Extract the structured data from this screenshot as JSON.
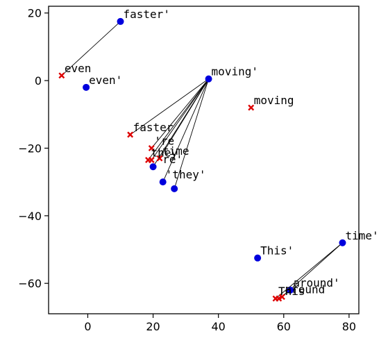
{
  "chart_data": {
    "type": "scatter",
    "xlim": [
      -12,
      83
    ],
    "ylim": [
      -69,
      22
    ],
    "xticks": [
      0,
      20,
      40,
      60,
      80
    ],
    "yticks": [
      20,
      0,
      -20,
      -40,
      -60
    ],
    "grid": false,
    "colors": {
      "blue_series": "#0000dd",
      "red_series": "#dd0000",
      "links": "#000000"
    },
    "blue_points": [
      {
        "label": "faster'",
        "x": 10.0,
        "y": 17.5
      },
      {
        "label": "even'",
        "x": -0.5,
        "y": -2.0
      },
      {
        "label": "moving'",
        "x": 37.0,
        "y": 0.5
      },
      {
        "label": "'re'",
        "x": 20.0,
        "y": -25.5
      },
      {
        "label": "'they'",
        "x": 23.0,
        "y": -30.0
      },
      {
        "label": "",
        "x": 26.5,
        "y": -32.0
      },
      {
        "label": "This'",
        "x": 52.0,
        "y": -52.5
      },
      {
        "label": "time'",
        "x": 78.0,
        "y": -48.0
      },
      {
        "label": "around'",
        "x": 62.0,
        "y": -62.0
      }
    ],
    "red_points": [
      {
        "label": "even",
        "x": -8.0,
        "y": 1.5
      },
      {
        "label": "moving",
        "x": 50.0,
        "y": -8.0
      },
      {
        "label": "faster",
        "x": 13.0,
        "y": -16.0
      },
      {
        "label": "'re",
        "x": 19.5,
        "y": -20.0
      },
      {
        "label": "time",
        "x": 22.0,
        "y": -23.0
      },
      {
        "label": "they",
        "x": 18.5,
        "y": -23.5
      },
      {
        "label": "",
        "x": 19.5,
        "y": -23.5
      },
      {
        "label": "This",
        "x": 57.5,
        "y": -64.5
      },
      {
        "label": "around",
        "x": 59.5,
        "y": -64.0
      },
      {
        "label": "",
        "x": 58.5,
        "y": -64.5
      }
    ],
    "links": [
      {
        "from": [
          10.0,
          17.5
        ],
        "to": [
          -8.0,
          1.5
        ]
      },
      {
        "from": [
          37.0,
          0.5
        ],
        "to": [
          13.0,
          -16.0
        ]
      },
      {
        "from": [
          37.0,
          0.5
        ],
        "to": [
          19.5,
          -20.0
        ]
      },
      {
        "from": [
          37.0,
          0.5
        ],
        "to": [
          18.5,
          -23.5
        ]
      },
      {
        "from": [
          37.0,
          0.5
        ],
        "to": [
          19.5,
          -23.5
        ]
      },
      {
        "from": [
          37.0,
          0.5
        ],
        "to": [
          22.0,
          -23.0
        ]
      },
      {
        "from": [
          37.0,
          0.5
        ],
        "to": [
          20.0,
          -25.5
        ]
      },
      {
        "from": [
          37.0,
          0.5
        ],
        "to": [
          23.0,
          -30.0
        ]
      },
      {
        "from": [
          37.0,
          0.5
        ],
        "to": [
          26.5,
          -32.0
        ]
      },
      {
        "from": [
          78.0,
          -48.0
        ],
        "to": [
          57.5,
          -64.5
        ]
      },
      {
        "from": [
          78.0,
          -48.0
        ],
        "to": [
          59.5,
          -64.0
        ]
      },
      {
        "from": [
          62.0,
          -62.0
        ],
        "to": [
          58.5,
          -64.5
        ]
      }
    ]
  }
}
